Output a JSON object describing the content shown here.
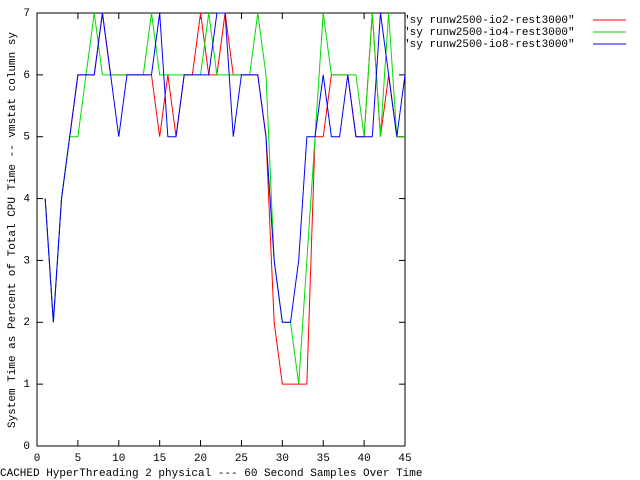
{
  "chart_data": {
    "type": "line",
    "xlabel": "CACHED HyperThreading 2 physical --- 60 Second Samples Over Time",
    "ylabel": "System Time as Percent of Total CPU Time -- vmstat column sy",
    "x": [
      1,
      2,
      3,
      4,
      5,
      6,
      7,
      8,
      9,
      10,
      11,
      12,
      13,
      14,
      15,
      16,
      17,
      18,
      19,
      20,
      21,
      22,
      23,
      24,
      25,
      26,
      27,
      28,
      29,
      30,
      31,
      32,
      33,
      34,
      35,
      36,
      37,
      38,
      39,
      40,
      41,
      42,
      43,
      44,
      45
    ],
    "series": [
      {
        "name": "\"sy runw2500-io2-rest3000\"",
        "color": "#ff0000",
        "values": [
          4,
          2,
          4,
          5,
          6,
          6,
          6,
          7,
          6,
          6,
          6,
          6,
          6,
          6,
          5,
          6,
          5,
          6,
          6,
          7,
          6,
          6,
          7,
          6,
          6,
          6,
          6,
          5,
          2,
          1,
          1,
          1,
          1,
          5,
          5,
          6,
          6,
          6,
          5,
          5,
          7,
          5,
          6,
          5,
          5
        ]
      },
      {
        "name": "\"sy runw2500-io4-rest3000\"",
        "color": "#00dd00",
        "values": [
          4,
          2,
          4,
          5,
          5,
          6,
          7,
          6,
          6,
          6,
          6,
          6,
          6,
          7,
          6,
          6,
          6,
          6,
          6,
          6,
          7,
          6,
          6,
          6,
          6,
          6,
          7,
          6,
          3,
          2,
          2,
          1,
          3,
          5,
          7,
          6,
          6,
          6,
          6,
          5,
          7,
          5,
          7,
          5,
          5
        ]
      },
      {
        "name": "\"sy runw2500-io8-rest3000\"",
        "color": "#0000ff",
        "values": [
          4,
          2,
          4,
          5,
          6,
          6,
          6,
          7,
          6,
          5,
          6,
          6,
          6,
          6,
          7,
          5,
          5,
          6,
          6,
          6,
          6,
          7,
          7,
          5,
          6,
          6,
          6,
          5,
          3,
          2,
          2,
          3,
          5,
          5,
          6,
          5,
          5,
          6,
          5,
          5,
          5,
          7,
          6,
          5,
          6
        ]
      }
    ],
    "xlim": [
      0,
      45
    ],
    "xticks": [
      0,
      5,
      10,
      15,
      20,
      25,
      30,
      35,
      40,
      45
    ],
    "ylim": [
      0,
      7
    ],
    "yticks": [
      0,
      1,
      2,
      3,
      4,
      5,
      6,
      7
    ],
    "legend": "top-right"
  }
}
